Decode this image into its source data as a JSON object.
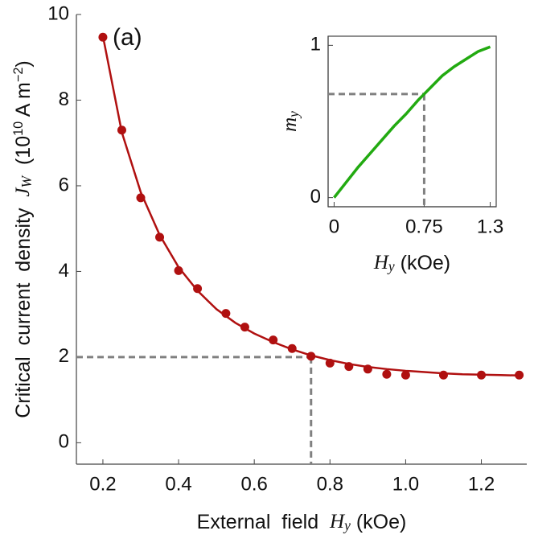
{
  "chart_data": [
    {
      "type": "scatter-line",
      "panel_label": "(a)",
      "x_label": [
        {
          "text": "External  field  "
        },
        {
          "text": "H",
          "style": "italic"
        },
        {
          "text": "y",
          "style": "italic-sub"
        },
        {
          "text": " (kOe)"
        }
      ],
      "y_label": [
        {
          "text": "Critical  current  density  "
        },
        {
          "text": "J",
          "style": "italic"
        },
        {
          "text": "W",
          "style": "italic-sub"
        },
        {
          "text": "  (10"
        },
        {
          "text": "10",
          "style": "sup"
        },
        {
          "text": " A m"
        },
        {
          "text": "−2",
          "style": "sup"
        },
        {
          "text": ")"
        }
      ],
      "xlim": [
        0.13,
        1.32
      ],
      "ylim": [
        -0.5,
        10
      ],
      "xticks": [
        0.2,
        0.4,
        0.6,
        0.8,
        {
          "value": 1,
          "label": "1.0"
        },
        1.2
      ],
      "yticks": [
        0,
        2,
        4,
        6,
        8,
        10
      ],
      "color": "#b01010",
      "points": {
        "x": [
          0.2,
          0.25,
          0.3,
          0.35,
          0.4,
          0.45,
          0.525,
          0.575,
          0.65,
          0.7,
          0.75,
          0.8,
          0.85,
          0.9,
          0.95,
          1.0,
          1.1,
          1.2,
          1.3
        ],
        "values": [
          9.47,
          7.3,
          5.72,
          4.8,
          4.02,
          3.6,
          3.02,
          2.7,
          2.4,
          2.2,
          2.02,
          1.86,
          1.78,
          1.72,
          1.6,
          1.58,
          1.58,
          1.58,
          1.58
        ]
      },
      "fit": {
        "x": [
          0.2,
          0.25,
          0.3,
          0.35,
          0.4,
          0.45,
          0.5,
          0.55,
          0.6,
          0.65,
          0.7,
          0.75,
          0.8,
          0.85,
          0.9,
          0.95,
          1.0,
          1.05,
          1.1,
          1.15,
          1.2,
          1.25,
          1.3
        ],
        "values": [
          9.5,
          7.25,
          5.85,
          4.85,
          4.1,
          3.55,
          3.12,
          2.8,
          2.55,
          2.35,
          2.18,
          2.04,
          1.93,
          1.84,
          1.77,
          1.72,
          1.68,
          1.65,
          1.62,
          1.6,
          1.59,
          1.58,
          1.57
        ]
      },
      "reference": {
        "x": 0.75,
        "y": 2
      }
    },
    {
      "type": "line",
      "x_label": [
        {
          "text": "H",
          "style": "italic"
        },
        {
          "text": "y",
          "style": "italic-sub"
        },
        {
          "text": " (kOe)"
        }
      ],
      "y_label": [
        {
          "text": "m",
          "style": "italic"
        },
        {
          "text": "y",
          "style": "italic-sub"
        }
      ],
      "xlim": [
        -0.05,
        1.35
      ],
      "ylim": [
        -0.06,
        1.06
      ],
      "xticks": [
        0,
        0.75,
        1.3
      ],
      "yticks": [
        0,
        1
      ],
      "color": "#22aa11",
      "x": [
        0,
        0.1,
        0.2,
        0.3,
        0.4,
        0.5,
        0.6,
        0.7,
        0.75,
        0.8,
        0.9,
        1.0,
        1.1,
        1.2,
        1.3
      ],
      "values": [
        0,
        0.1,
        0.2,
        0.29,
        0.38,
        0.47,
        0.55,
        0.64,
        0.68,
        0.72,
        0.8,
        0.86,
        0.91,
        0.96,
        0.99
      ],
      "reference": {
        "x": 0.75,
        "y": 0.68
      }
    }
  ]
}
